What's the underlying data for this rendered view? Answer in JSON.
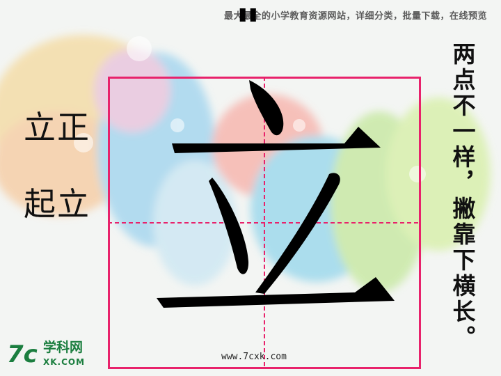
{
  "banner": {
    "text": "最大最全的小学教育资源网站，详细分类，批量下载，在线预览"
  },
  "words": {
    "word1": "立正",
    "word2": "起立"
  },
  "stroke_marker": {
    "text": "\""
  },
  "character": {
    "text": "立"
  },
  "tip": {
    "text": "两点不一样，撇靠下横长。"
  },
  "logo": {
    "mark": "7c",
    "cn": "学科网",
    "en": "XK.COM"
  },
  "url": {
    "text": "www.7cxk.com"
  },
  "colors": {
    "grid": "#e8226b",
    "ink": "#000000",
    "logo": "#1b7e3f"
  }
}
